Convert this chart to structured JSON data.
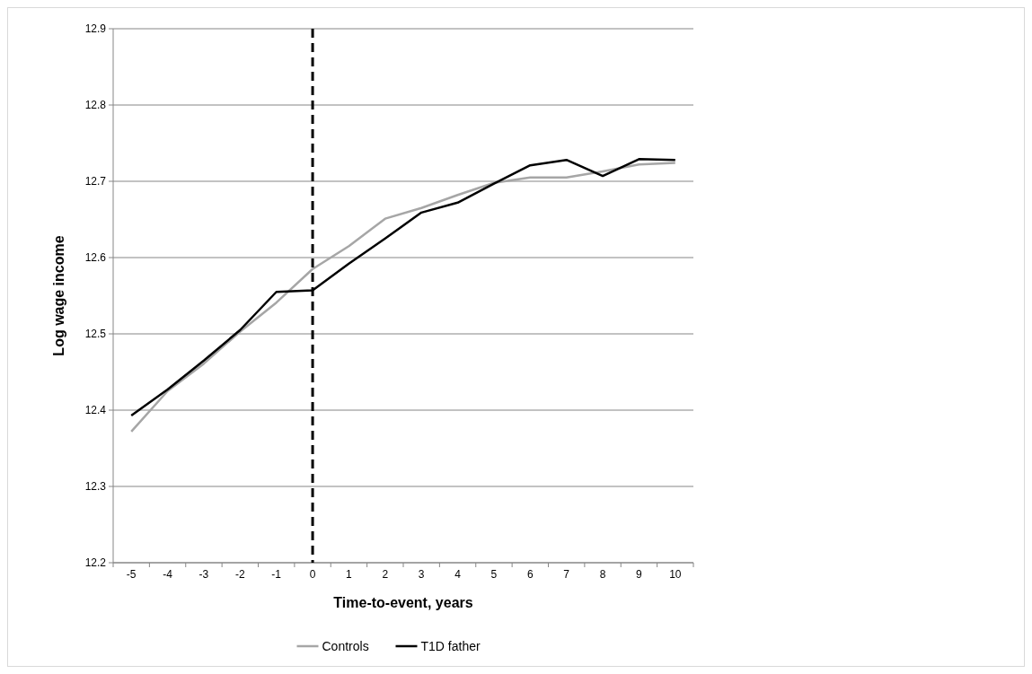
{
  "chart_data": {
    "type": "line",
    "xlabel": "Time-to-event, years",
    "ylabel": "Log wage income",
    "categories": [
      "-5",
      "-4",
      "-3",
      "-2",
      "-1",
      "0",
      "1",
      "2",
      "3",
      "4",
      "5",
      "6",
      "7",
      "8",
      "9",
      "10"
    ],
    "series": [
      {
        "name": "Controls",
        "color": "#a6a6a6",
        "values": [
          12.372,
          12.425,
          12.461,
          12.503,
          12.541,
          12.585,
          12.615,
          12.651,
          12.665,
          12.682,
          12.698,
          12.705,
          12.705,
          12.713,
          12.722,
          12.724
        ]
      },
      {
        "name": "T1D father",
        "color": "#000000",
        "values": [
          12.393,
          12.427,
          12.465,
          12.505,
          12.555,
          12.557,
          12.592,
          12.625,
          12.659,
          12.672,
          12.697,
          12.721,
          12.728,
          12.707,
          12.729,
          12.728
        ]
      }
    ],
    "ylim": [
      12.2,
      12.9
    ],
    "yticks": [
      12.2,
      12.3,
      12.4,
      12.5,
      12.6,
      12.7,
      12.8,
      12.9
    ],
    "grid": "y",
    "legend": "bottom",
    "marker": "none",
    "line_style": "solid",
    "ref_lines": [
      {
        "axis": "x",
        "value": "0",
        "color": "#000000",
        "line_style": "dashed"
      }
    ]
  }
}
